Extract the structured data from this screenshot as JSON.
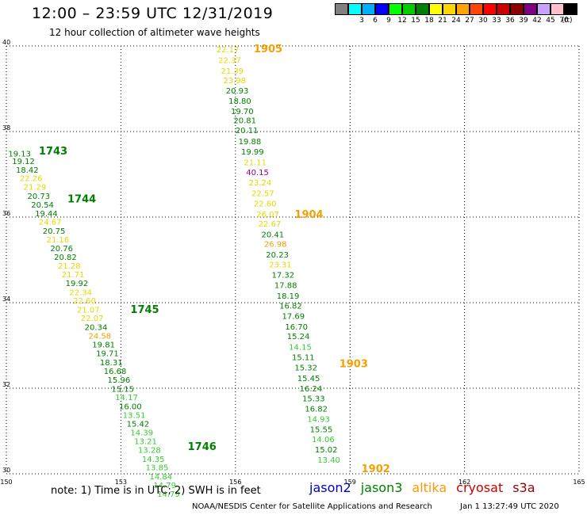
{
  "header": {
    "title": "12:00 – 23:59 UTC 12/31/2019",
    "subtitle": "12 hour collection of altimeter wave heights"
  },
  "legend": {
    "swatches": [
      {
        "color": "#808080",
        "label": ""
      },
      {
        "color": "#00ffff",
        "label": "3"
      },
      {
        "color": "#00b0ff",
        "label": "6"
      },
      {
        "color": "#0000ff",
        "label": "9"
      },
      {
        "color": "#00ff00",
        "label": "12"
      },
      {
        "color": "#00cc00",
        "label": "15"
      },
      {
        "color": "#008000",
        "label": "18"
      },
      {
        "color": "#ffff00",
        "label": "21"
      },
      {
        "color": "#ffd700",
        "label": "24"
      },
      {
        "color": "#ffa500",
        "label": "27"
      },
      {
        "color": "#ff4500",
        "label": "30"
      },
      {
        "color": "#ff0000",
        "label": "33"
      },
      {
        "color": "#cc0000",
        "label": "36"
      },
      {
        "color": "#8b0000",
        "label": "39"
      },
      {
        "color": "#800080",
        "label": "42"
      },
      {
        "color": "#c8a2ff",
        "label": "45"
      },
      {
        "color": "#ffc0cb",
        "label": "70"
      },
      {
        "color": "#000000",
        "label": ""
      }
    ],
    "unit": "(ft)"
  },
  "map": {
    "lon_range": [
      150,
      165
    ],
    "lat_range": [
      30,
      40
    ],
    "lon_ticks": [
      "150",
      "153",
      "156",
      "159",
      "162",
      "165"
    ],
    "lat_ticks": [
      "30",
      "32",
      "34",
      "36",
      "38",
      "40"
    ],
    "grid": true,
    "colors": {
      "green": "#008000",
      "lightgreen": "#33cc33",
      "yellow": "#e6d800",
      "orange": "#f5a000",
      "purple": "#990099"
    },
    "passes": [
      {
        "label": "1905",
        "lat": 39.85,
        "lon": 156.48
      },
      {
        "label": "1743",
        "lat": 37.46,
        "lon": 150.85
      },
      {
        "label": "1744",
        "lat": 36.34,
        "lon": 151.6
      },
      {
        "label": "1904",
        "lat": 35.98,
        "lon": 157.55
      },
      {
        "label": "1745",
        "lat": 33.76,
        "lon": 153.25
      },
      {
        "label": "1903",
        "lat": 32.49,
        "lon": 158.72
      },
      {
        "label": "1746",
        "lat": 30.56,
        "lon": 154.75
      },
      {
        "label": "1902",
        "lat": 30.04,
        "lon": 159.3
      }
    ],
    "tracks": [
      {
        "id": "track-19",
        "points": [
          {
            "v": "22.17",
            "lat": 39.85,
            "lon": 155.5,
            "c": "yellow"
          },
          {
            "v": "22.37",
            "lat": 39.6,
            "lon": 155.55,
            "c": "yellow"
          },
          {
            "v": "21.39",
            "lat": 39.35,
            "lon": 155.62,
            "c": "yellow"
          },
          {
            "v": "23.98",
            "lat": 39.13,
            "lon": 155.68,
            "c": "yellow"
          },
          {
            "v": "20.93",
            "lat": 38.89,
            "lon": 155.75,
            "c": "green"
          },
          {
            "v": "18.80",
            "lat": 38.65,
            "lon": 155.82,
            "c": "green"
          },
          {
            "v": "19.70",
            "lat": 38.41,
            "lon": 155.88,
            "c": "green"
          },
          {
            "v": "20.81",
            "lat": 38.19,
            "lon": 155.95,
            "c": "green"
          },
          {
            "v": "20.11",
            "lat": 37.96,
            "lon": 156.0,
            "c": "green"
          },
          {
            "v": "19.88",
            "lat": 37.7,
            "lon": 156.08,
            "c": "green"
          },
          {
            "v": "19.99",
            "lat": 37.46,
            "lon": 156.15,
            "c": "green"
          },
          {
            "v": "21.11",
            "lat": 37.21,
            "lon": 156.22,
            "c": "yellow"
          },
          {
            "v": "40.15",
            "lat": 36.98,
            "lon": 156.28,
            "c": "purple"
          },
          {
            "v": "23.24",
            "lat": 36.74,
            "lon": 156.35,
            "c": "yellow"
          },
          {
            "v": "22.57",
            "lat": 36.49,
            "lon": 156.42,
            "c": "yellow"
          },
          {
            "v": "22.60",
            "lat": 36.25,
            "lon": 156.48,
            "c": "yellow"
          },
          {
            "v": "26.07",
            "lat": 36.0,
            "lon": 156.55,
            "c": "yellow"
          },
          {
            "v": "22.67",
            "lat": 35.78,
            "lon": 156.6,
            "c": "yellow"
          },
          {
            "v": "20.41",
            "lat": 35.53,
            "lon": 156.68,
            "c": "green"
          },
          {
            "v": "26.98",
            "lat": 35.31,
            "lon": 156.75,
            "c": "orange"
          },
          {
            "v": "20.23",
            "lat": 35.06,
            "lon": 156.8,
            "c": "green"
          },
          {
            "v": "23.31",
            "lat": 34.82,
            "lon": 156.88,
            "c": "yellow"
          },
          {
            "v": "17.32",
            "lat": 34.58,
            "lon": 156.95,
            "c": "green"
          },
          {
            "v": "17.88",
            "lat": 34.34,
            "lon": 157.02,
            "c": "green"
          },
          {
            "v": "18.19",
            "lat": 34.09,
            "lon": 157.08,
            "c": "green"
          },
          {
            "v": "16.82",
            "lat": 33.86,
            "lon": 157.15,
            "c": "green"
          },
          {
            "v": "17.69",
            "lat": 33.62,
            "lon": 157.22,
            "c": "green"
          },
          {
            "v": "16.70",
            "lat": 33.37,
            "lon": 157.3,
            "c": "green"
          },
          {
            "v": "15.24",
            "lat": 33.15,
            "lon": 157.35,
            "c": "green"
          },
          {
            "v": "14.15",
            "lat": 32.9,
            "lon": 157.4,
            "c": "lightgreen"
          },
          {
            "v": "15.11",
            "lat": 32.66,
            "lon": 157.48,
            "c": "green"
          },
          {
            "v": "15.32",
            "lat": 32.42,
            "lon": 157.55,
            "c": "green"
          },
          {
            "v": "15.45",
            "lat": 32.17,
            "lon": 157.62,
            "c": "green"
          },
          {
            "v": "16.24",
            "lat": 31.93,
            "lon": 157.68,
            "c": "green"
          },
          {
            "v": "15.33",
            "lat": 31.69,
            "lon": 157.75,
            "c": "green"
          },
          {
            "v": "16.82",
            "lat": 31.45,
            "lon": 157.82,
            "c": "green"
          },
          {
            "v": "14.93",
            "lat": 31.21,
            "lon": 157.88,
            "c": "lightgreen"
          },
          {
            "v": "15.55",
            "lat": 30.97,
            "lon": 157.95,
            "c": "green"
          },
          {
            "v": "14.06",
            "lat": 30.74,
            "lon": 158.0,
            "c": "lightgreen"
          },
          {
            "v": "15.02",
            "lat": 30.5,
            "lon": 158.08,
            "c": "green"
          },
          {
            "v": "13.40",
            "lat": 30.26,
            "lon": 158.15,
            "c": "lightgreen"
          }
        ]
      },
      {
        "id": "track-17",
        "points": [
          {
            "v": "19.13",
            "lat": 37.42,
            "lon": 150.05,
            "c": "green"
          },
          {
            "v": "19.12",
            "lat": 37.24,
            "lon": 150.15,
            "c": "green"
          },
          {
            "v": "18.42",
            "lat": 37.04,
            "lon": 150.25,
            "c": "green"
          },
          {
            "v": "22.26",
            "lat": 36.84,
            "lon": 150.35,
            "c": "yellow"
          },
          {
            "v": "21.29",
            "lat": 36.64,
            "lon": 150.45,
            "c": "yellow"
          },
          {
            "v": "20.73",
            "lat": 36.43,
            "lon": 150.55,
            "c": "green"
          },
          {
            "v": "20.54",
            "lat": 36.22,
            "lon": 150.65,
            "c": "green"
          },
          {
            "v": "19.44",
            "lat": 36.02,
            "lon": 150.75,
            "c": "green"
          },
          {
            "v": "24.67",
            "lat": 35.82,
            "lon": 150.85,
            "c": "yellow"
          },
          {
            "v": "20.75",
            "lat": 35.61,
            "lon": 150.95,
            "c": "green"
          },
          {
            "v": "21.16",
            "lat": 35.41,
            "lon": 151.05,
            "c": "yellow"
          },
          {
            "v": "20.76",
            "lat": 35.2,
            "lon": 151.15,
            "c": "green"
          },
          {
            "v": "20.82",
            "lat": 35.0,
            "lon": 151.25,
            "c": "green"
          },
          {
            "v": "21.28",
            "lat": 34.8,
            "lon": 151.35,
            "c": "yellow"
          },
          {
            "v": "21.71",
            "lat": 34.59,
            "lon": 151.45,
            "c": "yellow"
          },
          {
            "v": "19.92",
            "lat": 34.39,
            "lon": 151.55,
            "c": "green"
          },
          {
            "v": "22.34",
            "lat": 34.18,
            "lon": 151.65,
            "c": "yellow"
          },
          {
            "v": "22.60",
            "lat": 33.98,
            "lon": 151.75,
            "c": "yellow"
          },
          {
            "v": "21.07",
            "lat": 33.77,
            "lon": 151.85,
            "c": "yellow"
          },
          {
            "v": "22.07",
            "lat": 33.57,
            "lon": 151.95,
            "c": "yellow"
          },
          {
            "v": "20.34",
            "lat": 33.36,
            "lon": 152.05,
            "c": "green"
          },
          {
            "v": "24.58",
            "lat": 33.16,
            "lon": 152.15,
            "c": "orange"
          },
          {
            "v": "19.81",
            "lat": 32.95,
            "lon": 152.25,
            "c": "green"
          },
          {
            "v": "19.71",
            "lat": 32.75,
            "lon": 152.35,
            "c": "green"
          },
          {
            "v": "18.31",
            "lat": 32.54,
            "lon": 152.45,
            "c": "green"
          },
          {
            "v": "16.68",
            "lat": 32.33,
            "lon": 152.55,
            "c": "green"
          },
          {
            "v": "15.96",
            "lat": 32.13,
            "lon": 152.65,
            "c": "green"
          },
          {
            "v": "15.15",
            "lat": 31.92,
            "lon": 152.75,
            "c": "green"
          },
          {
            "v": "14.17",
            "lat": 31.72,
            "lon": 152.85,
            "c": "lightgreen"
          },
          {
            "v": "16.00",
            "lat": 31.51,
            "lon": 152.95,
            "c": "green"
          },
          {
            "v": "13.51",
            "lat": 31.31,
            "lon": 153.05,
            "c": "lightgreen"
          },
          {
            "v": "15.42",
            "lat": 31.1,
            "lon": 153.15,
            "c": "green"
          },
          {
            "v": "14.39",
            "lat": 30.9,
            "lon": 153.25,
            "c": "lightgreen"
          },
          {
            "v": "13.21",
            "lat": 30.69,
            "lon": 153.35,
            "c": "lightgreen"
          },
          {
            "v": "13.28",
            "lat": 30.49,
            "lon": 153.45,
            "c": "lightgreen"
          },
          {
            "v": "14.35",
            "lat": 30.28,
            "lon": 153.55,
            "c": "lightgreen"
          },
          {
            "v": "13.85",
            "lat": 30.08,
            "lon": 153.65,
            "c": "lightgreen"
          },
          {
            "v": "14.84",
            "lat": 29.87,
            "lon": 153.75,
            "c": "lightgreen"
          },
          {
            "v": "14.79",
            "lat": 29.67,
            "lon": 153.85,
            "c": "lightgreen"
          },
          {
            "v": "14.79",
            "lat": 29.46,
            "lon": 153.95,
            "c": "lightgreen"
          }
        ]
      }
    ]
  },
  "footer": {
    "note": "note:  1) Time is in UTC;  2) SWH is in feet",
    "satellites": [
      {
        "name": "jason2",
        "color": "#0000cc"
      },
      {
        "name": "jason3",
        "color": "#008000"
      },
      {
        "name": "altika",
        "color": "#ff9900"
      },
      {
        "name": "cryosat",
        "color": "#cc0000"
      },
      {
        "name": "s3a",
        "color": "#990000"
      }
    ],
    "credit": "NOAA/NESDIS Center for Satellite Applications and Research",
    "generated": "Jan  1 13:27:49 UTC 2020"
  }
}
